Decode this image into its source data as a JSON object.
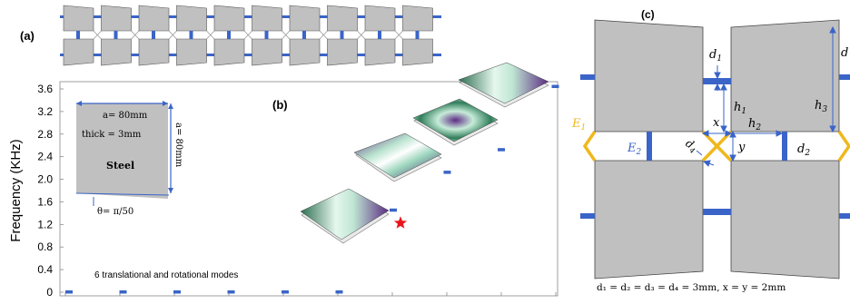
{
  "panel_a": {
    "label": "(a)",
    "cell_count": 10
  },
  "panel_b": {
    "label": "(b)",
    "y_axis_label": "Frequency (KHz)",
    "y_ticks": [
      "0",
      "0.4",
      "0.8",
      "1.2",
      "1.6",
      "2.0",
      "2.4",
      "2.8",
      "3.2",
      "3.6"
    ],
    "inset": {
      "dim_a_horizontal": "a= 80mm",
      "dim_a_vertical": "a= 80mm",
      "thickness": "thick = 3mm",
      "material": "Steel",
      "angle": "θ= π/50"
    },
    "bottom_note": "6 translational and rotational modes",
    "mode_points_khz": [
      0,
      0,
      0,
      0,
      0,
      0,
      1.45,
      2.12,
      2.52,
      3.64
    ],
    "colors": {
      "marker": "#3a64c8",
      "star": "#e8141b",
      "plate_gray": "#c0c0c0",
      "accent_yellow": "#f0b81c"
    }
  },
  "panel_c": {
    "label": "(c)",
    "d1": "d",
    "d1_sub": "1",
    "d2": "d",
    "d2_sub": "2",
    "d4": "d",
    "d4_sub": "4",
    "d_top_right": "d",
    "h1": "h",
    "h1_sub": "1",
    "h2": "h",
    "h2_sub": "2",
    "h3": "h",
    "h3_sub": "3",
    "x": "x",
    "y": "y",
    "E1": "E",
    "E1_sub": "1",
    "E2": "E",
    "E2_sub": "2",
    "caption": "d₁ = d₂ = d₃ = d₄ = 3mm, x = y = 2mm"
  }
}
